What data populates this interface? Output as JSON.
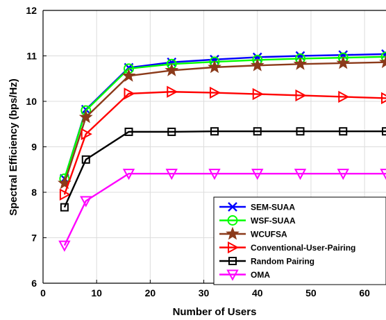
{
  "chart_data": {
    "type": "line",
    "xlabel": "Number of Users",
    "ylabel": "Spectral Efficiency (bps/Hz)",
    "xlim": [
      0,
      64
    ],
    "ylim": [
      6,
      12
    ],
    "xticks": [
      "0",
      "10",
      "20",
      "30",
      "40",
      "50",
      "60"
    ],
    "yticks": [
      "6",
      "7",
      "8",
      "9",
      "10",
      "11",
      "12"
    ],
    "grid": true,
    "legend_position": "bottom-right",
    "x": [
      4,
      8,
      16,
      24,
      32,
      40,
      48,
      56,
      64
    ],
    "series": [
      {
        "name": "SEM-SUAA",
        "color": "#0000ff",
        "marker": "x",
        "values": [
          8.3,
          9.82,
          10.74,
          10.86,
          10.92,
          10.97,
          11.0,
          11.02,
          11.04
        ]
      },
      {
        "name": "WSF-SUAA",
        "color": "#00ff00",
        "marker": "circle",
        "values": [
          8.3,
          9.8,
          10.72,
          10.82,
          10.87,
          10.91,
          10.94,
          10.96,
          10.98
        ]
      },
      {
        "name": "WCUFSA",
        "color": "#8b3a1a",
        "marker": "star",
        "values": [
          8.2,
          9.65,
          10.56,
          10.68,
          10.75,
          10.79,
          10.82,
          10.84,
          10.86
        ]
      },
      {
        "name": "Conventional-User-Pairing",
        "color": "#ff0000",
        "marker": "triangle-right",
        "values": [
          7.95,
          9.28,
          10.17,
          10.21,
          10.19,
          10.16,
          10.13,
          10.1,
          10.07
        ]
      },
      {
        "name": "Random Pairing",
        "color": "#000000",
        "marker": "square",
        "values": [
          7.67,
          8.72,
          9.33,
          9.33,
          9.34,
          9.34,
          9.34,
          9.34,
          9.34
        ]
      },
      {
        "name": "OMA",
        "color": "#ff00ff",
        "marker": "triangle-down",
        "values": [
          6.83,
          7.81,
          8.41,
          8.41,
          8.41,
          8.41,
          8.41,
          8.41,
          8.41
        ]
      }
    ]
  }
}
